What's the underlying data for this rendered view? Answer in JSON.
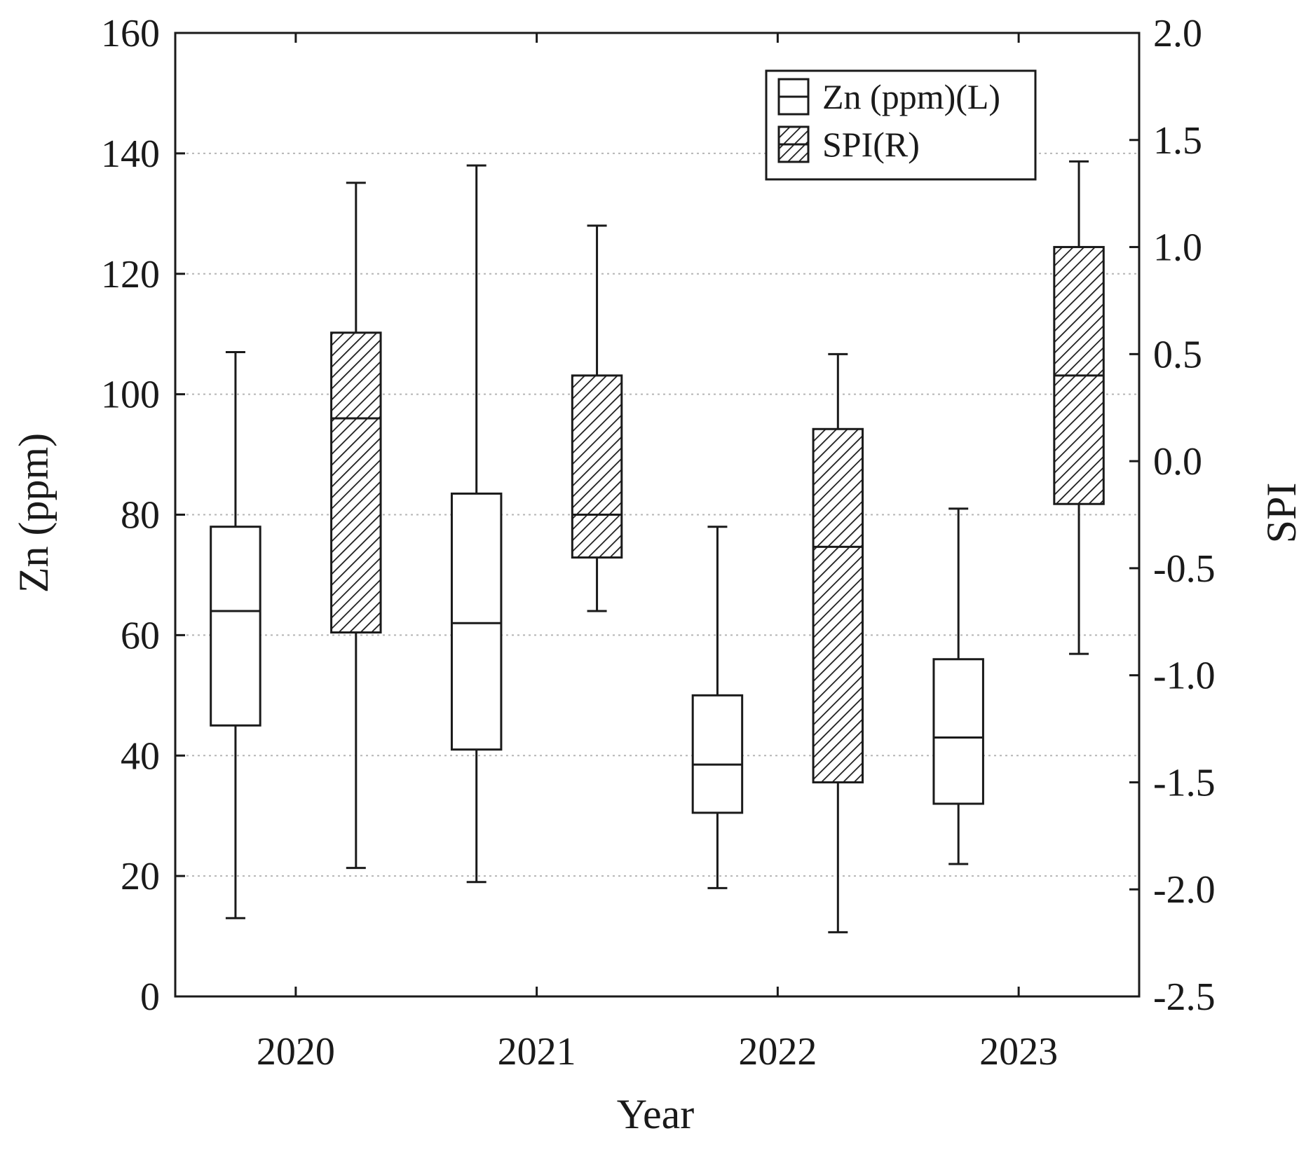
{
  "chart_data": {
    "type": "boxplot",
    "xlabel": "Year",
    "ylabel_left": "Zn (ppm)",
    "ylabel_right": "SPI",
    "ylim_left": [
      0,
      160
    ],
    "ylim_right": [
      -2.5,
      2.0
    ],
    "yticks_left": [
      "0",
      "20",
      "40",
      "60",
      "80",
      "100",
      "120",
      "140",
      "160"
    ],
    "yticks_right": [
      "-2.5",
      "-2.0",
      "-1.5",
      "-1.0",
      "-0.5",
      "0.0",
      "0.5",
      "1.0",
      "1.5",
      "2.0"
    ],
    "categories": [
      "2020",
      "2021",
      "2022",
      "2023"
    ],
    "grid": "horizontal dotted",
    "legend": {
      "position": "top-right",
      "entries": [
        "Zn (ppm)(L)",
        "SPI(R)"
      ]
    },
    "series": [
      {
        "name": "Zn (ppm)(L)",
        "axis": "left",
        "fill": "none",
        "boxes": [
          {
            "category": "2020",
            "min": 13,
            "q1": 45,
            "median": 64,
            "q3": 78,
            "max": 107
          },
          {
            "category": "2021",
            "min": 19,
            "q1": 41,
            "median": 62,
            "q3": 83.5,
            "max": 138
          },
          {
            "category": "2022",
            "min": 18,
            "q1": 30.5,
            "median": 38.5,
            "q3": 50,
            "max": 78
          },
          {
            "category": "2023",
            "min": 22,
            "q1": 32,
            "median": 43,
            "q3": 56,
            "max": 81
          }
        ]
      },
      {
        "name": "SPI(R)",
        "axis": "right",
        "fill": "hatched",
        "boxes": [
          {
            "category": "2020",
            "min": -1.9,
            "q1": -0.8,
            "median": 0.2,
            "q3": 0.6,
            "max": 1.3
          },
          {
            "category": "2021",
            "min": -0.7,
            "q1": -0.45,
            "median": -0.25,
            "q3": 0.4,
            "max": 1.1
          },
          {
            "category": "2022",
            "min": -2.2,
            "q1": -1.5,
            "median": -0.4,
            "q3": 0.15,
            "max": 0.5
          },
          {
            "category": "2023",
            "min": -0.9,
            "q1": -0.2,
            "median": 0.4,
            "q3": 1.0,
            "max": 1.4
          }
        ]
      }
    ]
  }
}
